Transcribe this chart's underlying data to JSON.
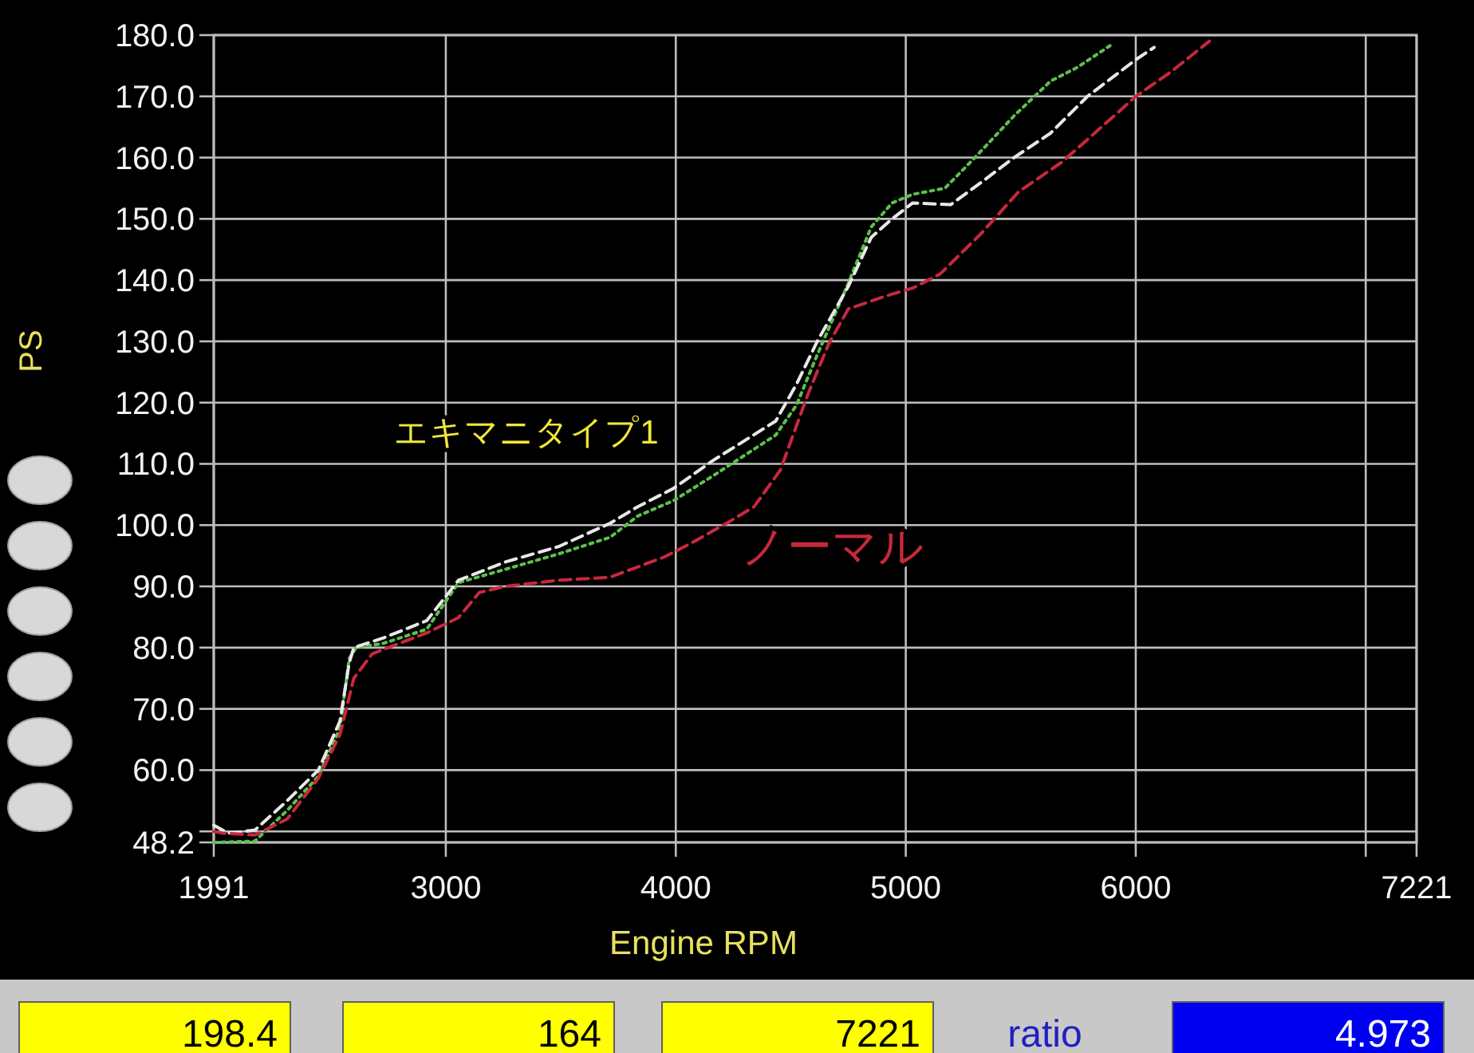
{
  "chart_data": {
    "type": "line",
    "xlabel": "Engine RPM",
    "ylabel": "PS",
    "xlim": [
      1991,
      7221
    ],
    "ylim": [
      48.2,
      180
    ],
    "xticks": [
      1991,
      3000,
      4000,
      5000,
      6000,
      {
        "value": 7000,
        "label": null
      },
      7221
    ],
    "yticks": [
      {
        "value": 48.2,
        "label": "48.2"
      },
      {
        "value": 50,
        "label": null
      },
      {
        "value": 60,
        "label": "60.0"
      },
      {
        "value": 70,
        "label": "70.0"
      },
      {
        "value": 80,
        "label": "80.0"
      },
      {
        "value": 90,
        "label": "90.0"
      },
      {
        "value": 100,
        "label": "100.0"
      },
      {
        "value": 110,
        "label": "110.0"
      },
      {
        "value": 120,
        "label": "120.0"
      },
      {
        "value": 130,
        "label": "130.0"
      },
      {
        "value": 140,
        "label": "140.0"
      },
      {
        "value": 150,
        "label": "150.0"
      },
      {
        "value": 160,
        "label": "160.0"
      },
      {
        "value": 170,
        "label": "170.0"
      },
      {
        "value": 180,
        "label": "180.0"
      }
    ],
    "grid": true,
    "marker": "none",
    "series": [
      {
        "color": "#5cc04a",
        "line_style": "dotted",
        "x": [
          1991,
          2170,
          2310,
          2446,
          2540,
          2580,
          2610,
          2730,
          2917,
          3055,
          3260,
          3490,
          3714,
          3835,
          3990,
          4160,
          4435,
          4525,
          4615,
          4750,
          4850,
          4940,
          5030,
          5170,
          5300,
          5470,
          5630,
          5745,
          5905
        ],
        "values": [
          48.2,
          48.4,
          53.4,
          59,
          66.8,
          78.2,
          80,
          80.7,
          83,
          90.6,
          92.8,
          95.3,
          98,
          101.5,
          104,
          108,
          114.7,
          119.6,
          127.8,
          139.5,
          148.7,
          152.6,
          154,
          155,
          160,
          166.8,
          172.5,
          174.7,
          178.7
        ]
      },
      {
        "name": "エキマニタイプ1",
        "color": "#e8e8e8",
        "line_style": "dashed",
        "x": [
          1991,
          2053,
          2170,
          2310,
          2446,
          2540,
          2580,
          2600,
          2730,
          2917,
          3055,
          3260,
          3490,
          3714,
          3835,
          3990,
          4160,
          4435,
          4525,
          4615,
          4750,
          4850,
          4940,
          5030,
          5195,
          5330,
          5470,
          5630,
          5790,
          6000,
          6080
        ],
        "values": [
          51,
          49.7,
          50.2,
          55,
          60,
          68,
          77.5,
          80,
          81.6,
          84.4,
          91,
          94,
          96.5,
          100.3,
          103,
          106,
          110.5,
          117,
          123,
          130,
          139,
          147,
          150,
          152.6,
          152.3,
          156,
          160,
          164,
          170,
          176,
          178
        ]
      },
      {
        "name": "ノーマル",
        "color": "#c8283c",
        "line_style": "dashed",
        "x": [
          1991,
          2030,
          2170,
          2310,
          2446,
          2540,
          2600,
          2680,
          2917,
          3055,
          3145,
          3260,
          3490,
          3714,
          3950,
          4065,
          4230,
          4340,
          4455,
          4575,
          4665,
          4750,
          4920,
          5030,
          5150,
          5330,
          5490,
          5680,
          5905,
          6000,
          6160,
          6320
        ],
        "values": [
          50,
          49.7,
          49.4,
          52,
          58.7,
          65.8,
          75,
          79,
          82.4,
          84.9,
          89,
          90,
          91,
          91.5,
          94.8,
          97,
          100.5,
          103,
          109,
          121.4,
          129.6,
          135.3,
          137.5,
          138.7,
          141,
          147.7,
          154.4,
          159.3,
          166.8,
          170,
          174.2,
          179
        ]
      }
    ],
    "annotations": [
      "198.4",
      "164",
      "7221",
      "ratio",
      "4.973"
    ]
  }
}
